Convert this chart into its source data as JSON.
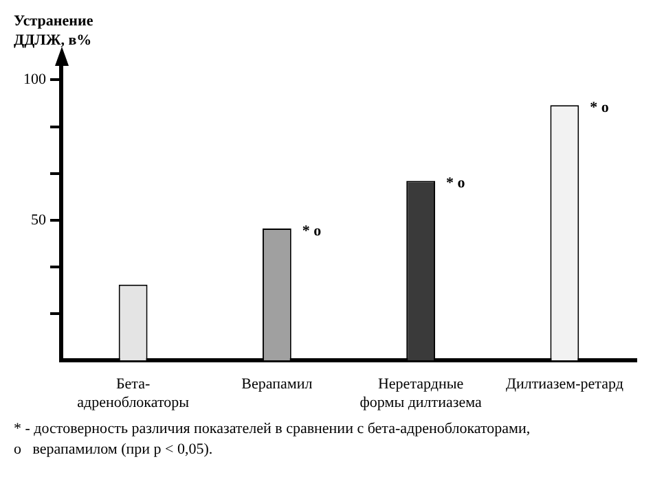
{
  "chart_data": {
    "type": "bar",
    "ylabel": "Устранение\nДДЛЖ, в%",
    "categories": [
      "Бета-\nадреноблокаторы",
      "Верапамил",
      "Неретардные\nформы дилтиазема",
      "Дилтиазем-ретард"
    ],
    "values": [
      27,
      47,
      64,
      91
    ],
    "colors": [
      "#e4e4e4",
      "#a0a0a0",
      "#3a3a3a",
      "#f2f2f2"
    ],
    "ylim": [
      0,
      105
    ],
    "yticks": [
      {
        "value": 16.7,
        "label": null
      },
      {
        "value": 33.3,
        "label": null
      },
      50,
      {
        "value": 66.7,
        "label": null
      },
      {
        "value": 83.3,
        "label": null
      },
      100
    ],
    "grid": false,
    "annotations": [
      {
        "text": "* o",
        "x": "Верапамил",
        "y": 47
      },
      {
        "text": "* o",
        "x": "Неретардные\nформы дилтиазема",
        "y": 64
      },
      {
        "text": "* o",
        "x": "Дилтиазем-ретард",
        "y": 91
      },
      "* - достоверность различия показателей в сравнении с бета-адреноблокаторами,",
      "o   верапамилом (при p < 0,05)."
    ]
  }
}
